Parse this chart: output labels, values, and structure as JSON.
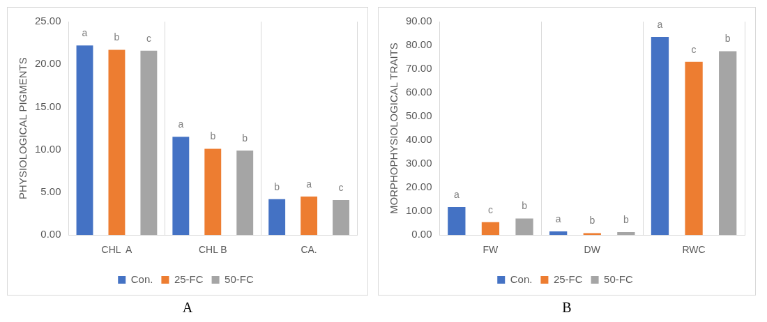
{
  "chart_data": [
    {
      "type": "bar",
      "ylabel": "PHYSIOLOGICAL PIGMENTS",
      "categories": [
        "CHL  A",
        "CHL B",
        "CA."
      ],
      "series": [
        {
          "name": "Con.",
          "color": "#4472c4",
          "values": [
            22.2,
            11.5,
            4.2
          ],
          "value_labels": [
            "a",
            "a",
            "b"
          ]
        },
        {
          "name": "25-FC",
          "color": "#ed7d31",
          "values": [
            21.7,
            10.1,
            4.5
          ],
          "value_labels": [
            "b",
            "b",
            "a"
          ]
        },
        {
          "name": "50-FC",
          "color": "#a5a5a5",
          "values": [
            21.6,
            9.9,
            4.1
          ],
          "value_labels": [
            "c",
            "b",
            "c"
          ]
        }
      ],
      "ylim": [
        0,
        25
      ],
      "yticks": [
        {
          "value": 0,
          "label": "0.00"
        },
        {
          "value": 5,
          "label": "5.00"
        },
        {
          "value": 10,
          "label": "10.00"
        },
        {
          "value": 15,
          "label": "15.00"
        },
        {
          "value": 20,
          "label": "20.00"
        },
        {
          "value": 25,
          "label": "25.00"
        }
      ],
      "grid": "x",
      "legend": "bottom",
      "annotations": [
        "A"
      ]
    },
    {
      "type": "bar",
      "ylabel": "MORPHOPHYSIOLOGICAL TRAITS",
      "categories": [
        "FW",
        "DW",
        "RWC"
      ],
      "series": [
        {
          "name": "Con.",
          "color": "#4472c4",
          "values": [
            11.8,
            1.5,
            83.5
          ],
          "value_labels": [
            "a",
            "a",
            "a"
          ]
        },
        {
          "name": "25-FC",
          "color": "#ed7d31",
          "values": [
            5.4,
            0.8,
            73.0
          ],
          "value_labels": [
            "c",
            "b",
            "c"
          ]
        },
        {
          "name": "50-FC",
          "color": "#a5a5a5",
          "values": [
            7.0,
            1.2,
            77.5
          ],
          "value_labels": [
            "b",
            "b",
            "b"
          ]
        }
      ],
      "ylim": [
        0,
        90
      ],
      "yticks": [
        {
          "value": 0,
          "label": "0.00"
        },
        {
          "value": 10,
          "label": "10.00"
        },
        {
          "value": 20,
          "label": "20.00"
        },
        {
          "value": 30,
          "label": "30.00"
        },
        {
          "value": 40,
          "label": "40.00"
        },
        {
          "value": 50,
          "label": "50.00"
        },
        {
          "value": 60,
          "label": "60.00"
        },
        {
          "value": 70,
          "label": "70.00"
        },
        {
          "value": 80,
          "label": "80.00"
        },
        {
          "value": 90,
          "label": "90.00"
        }
      ],
      "grid": "x",
      "legend": "bottom",
      "annotations": [
        "B"
      ]
    }
  ]
}
